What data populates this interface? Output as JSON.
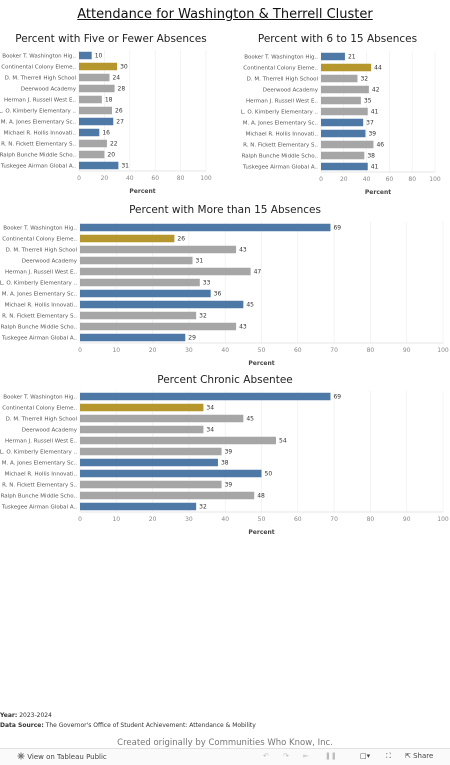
{
  "page": {
    "title": "Attendance for Washington & Therrell Cluster"
  },
  "colors": {
    "blue": "#4e79a7",
    "gold": "#b5972e",
    "gray": "#a6a6a6",
    "grid": "#ececec"
  },
  "chart_data": [
    {
      "type": "bar",
      "title": "Percent with Five or Fewer Absences",
      "xlabel": "Percent",
      "xlim": [
        0,
        100
      ],
      "ticks": [
        0,
        20,
        40,
        60,
        80,
        100
      ],
      "categories": [
        "Booker T. Washington Hig..",
        "Continental Colony Eleme..",
        "D. M. Therrell High School",
        "Deerwood Academy",
        "Herman J. Russell West E..",
        "L. O. Kimberly Elementary ..",
        "M. A. Jones Elementary Sc..",
        "Michael R. Hollis Innovati..",
        "R. N. Fickett Elementary S..",
        "Ralph Bunche Middle Scho..",
        "Tuskegee Airman Global A.."
      ],
      "values": [
        10,
        30,
        24,
        28,
        18,
        26,
        27,
        16,
        22,
        20,
        31
      ],
      "colors": [
        "blue",
        "gold",
        "gray",
        "gray",
        "gray",
        "gray",
        "blue",
        "blue",
        "gray",
        "gray",
        "blue"
      ]
    },
    {
      "type": "bar",
      "title": "Percent with 6 to 15 Absences",
      "xlabel": "Percent",
      "xlim": [
        0,
        100
      ],
      "ticks": [
        0,
        20,
        40,
        60,
        80,
        100
      ],
      "categories": [
        "Booker T. Washington Hig..",
        "Continental Colony Eleme..",
        "D. M. Therrell High School",
        "Deerwood Academy",
        "Herman J. Russell West E..",
        "L. O. Kimberly Elementary ..",
        "M. A. Jones Elementary Sc..",
        "Michael R. Hollis Innovati..",
        "R. N. Fickett Elementary S..",
        "Ralph Bunche Middle Scho..",
        "Tuskegee Airman Global A.."
      ],
      "values": [
        21,
        44,
        32,
        42,
        35,
        41,
        37,
        39,
        46,
        38,
        41
      ],
      "colors": [
        "blue",
        "gold",
        "gray",
        "gray",
        "gray",
        "gray",
        "blue",
        "blue",
        "gray",
        "gray",
        "blue"
      ]
    },
    {
      "type": "bar",
      "title": "Percent with More than 15 Absences",
      "xlabel": "Percent",
      "xlim": [
        0,
        100
      ],
      "ticks": [
        0,
        10,
        20,
        30,
        40,
        50,
        60,
        70,
        80,
        90,
        100
      ],
      "categories": [
        "Booker T. Washington Hig..",
        "Continental Colony Eleme..",
        "D. M. Therrell High School",
        "Deerwood Academy",
        "Herman J. Russell West E..",
        "L. O. Kimberly Elementary ..",
        "M. A. Jones Elementary Sc..",
        "Michael R. Hollis Innovati..",
        "R. N. Fickett Elementary S..",
        "Ralph Bunche Middle Scho..",
        "Tuskegee Airman Global A.."
      ],
      "values": [
        69,
        26,
        43,
        31,
        47,
        33,
        36,
        45,
        32,
        43,
        29
      ],
      "colors": [
        "blue",
        "gold",
        "gray",
        "gray",
        "gray",
        "gray",
        "blue",
        "blue",
        "gray",
        "gray",
        "blue"
      ]
    },
    {
      "type": "bar",
      "title": "Percent Chronic Absentee",
      "xlabel": "Percent",
      "xlim": [
        0,
        100
      ],
      "ticks": [
        0,
        10,
        20,
        30,
        40,
        50,
        60,
        70,
        80,
        90,
        100
      ],
      "categories": [
        "Booker T. Washington Hig..",
        "Continental Colony Eleme..",
        "D. M. Therrell High School",
        "Deerwood Academy",
        "Herman J. Russell West E..",
        "L. O. Kimberly Elementary ..",
        "M. A. Jones Elementary Sc..",
        "Michael R. Hollis Innovati..",
        "R. N. Fickett Elementary S..",
        "Ralph Bunche Middle Scho..",
        "Tuskegee Airman Global A.."
      ],
      "values": [
        69,
        34,
        45,
        34,
        54,
        39,
        38,
        50,
        39,
        48,
        32
      ],
      "colors": [
        "blue",
        "gold",
        "gray",
        "gray",
        "gray",
        "gray",
        "blue",
        "blue",
        "gray",
        "gray",
        "blue"
      ]
    }
  ],
  "footer": {
    "year_label": "Year:",
    "year_value": "2023-2024",
    "source_label": "Data Source:",
    "source_value": "The Governor's Office of Student Achievement: Attendance & Mobility",
    "credit": "Created originally by Communities Who Know, Inc."
  },
  "toolbar": {
    "view_label": "View on Tableau Public",
    "view_icon": "tableau-icon",
    "undo_icon": "undo-icon",
    "redo_icon": "redo-icon",
    "revert_icon": "revert-icon",
    "pause_icon": "pause-icon",
    "comment_icon": "comment-icon",
    "fullscreen_icon": "fullscreen-icon",
    "share_label": "Share",
    "share_icon": "share-icon"
  }
}
